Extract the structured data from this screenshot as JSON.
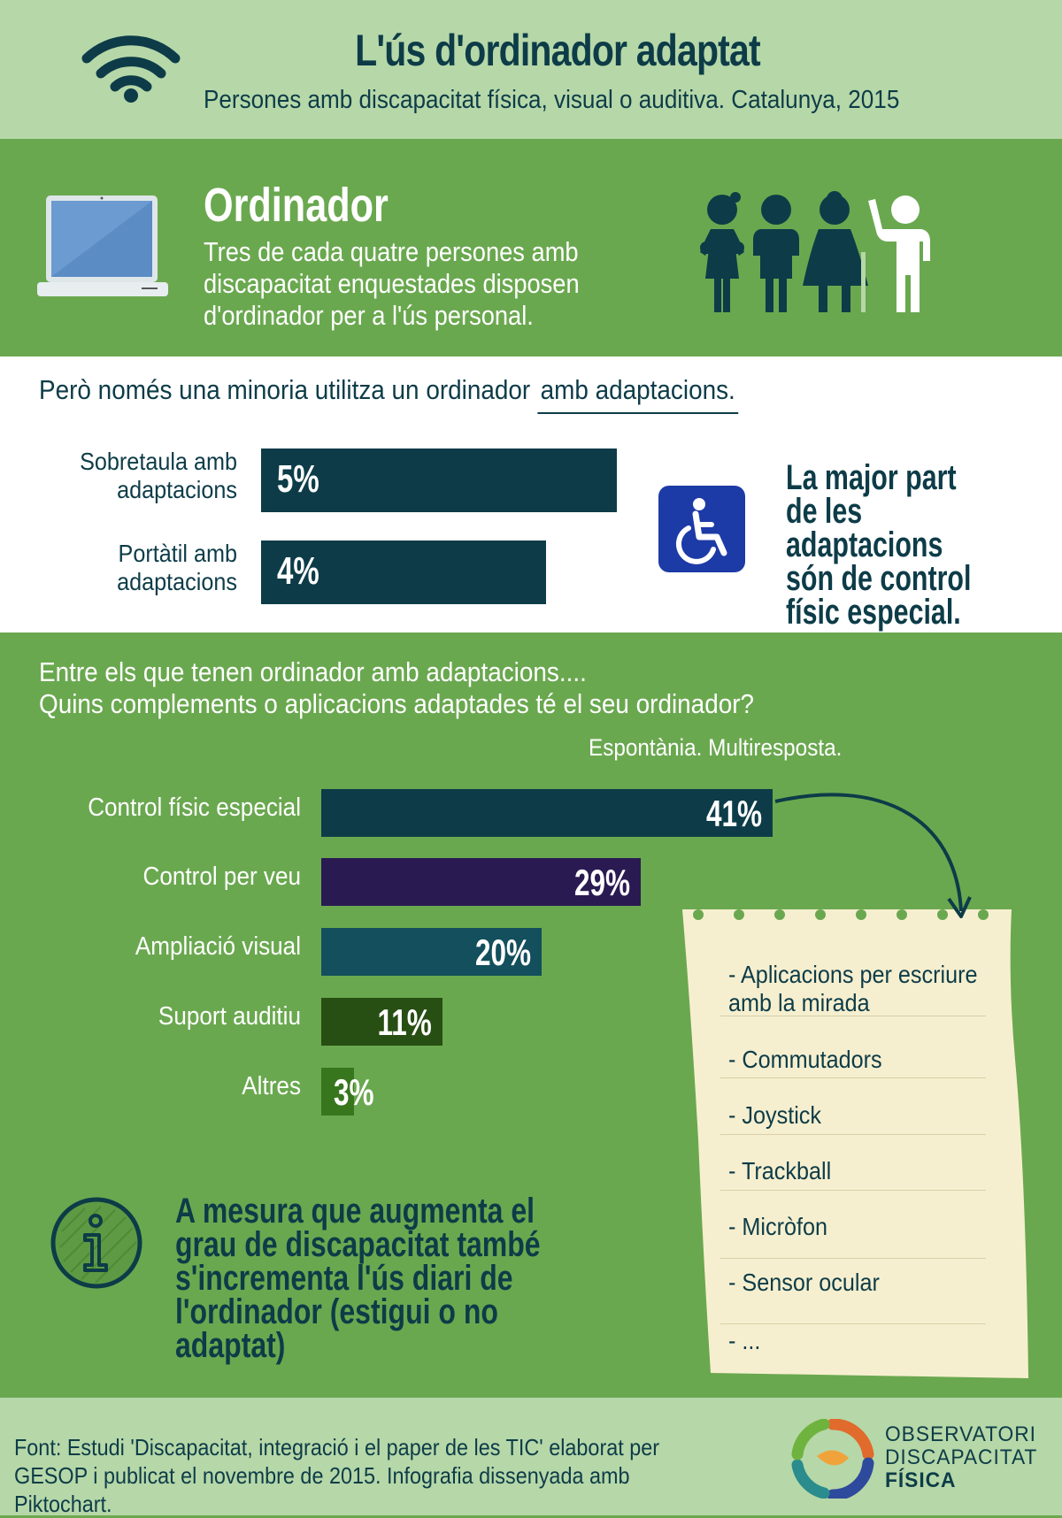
{
  "header": {
    "title": "L'ús d'ordinador adaptat",
    "subtitle": "Persones amb discapacitat física, visual o auditiva. Catalunya, 2015",
    "icon": "wifi-icon"
  },
  "ordinador": {
    "title": "Ordinador",
    "text": "Tres de cada quatre persones amb discapacitat enquestades disposen d'ordinador per a l'ús personal.",
    "laptop_icon": "laptop-icon",
    "people_icon": "people-icon"
  },
  "adaptations": {
    "intro_prefix": "Però només una minoria utilitza un ordinador ",
    "intro_highlight": "amb adaptacions.",
    "callout": "La major part de les adaptacions són de control físic especial.",
    "icon": "wheelchair-icon",
    "icon_color": "#1d3ba6"
  },
  "questions": {
    "line1": "Entre els que tenen ordinador amb adaptacions....",
    "line2": "Quins complements o aplicacions adaptades té el seu ordinador?",
    "note": "Espontània. Multiresposta."
  },
  "list": {
    "items": [
      "- Aplicacions  per escriure amb la mirada",
      "- Commutadors",
      "- Joystick",
      "- Trackball",
      "- Micròfon",
      "- Sensor ocular",
      "- ..."
    ]
  },
  "info": {
    "icon": "info-icon",
    "text": "A mesura que augmenta el grau de discapacitat també s'incrementa l'ús diari de l'ordinador (estigui o no adaptat)"
  },
  "footer": {
    "source": "Font: Estudi 'Discapacitat, integració i el paper de les TIC' elaborat per GESOP i publicat el novembre de 2015. Infografia dissenyada amb Piktochart.",
    "logo_icon": "observatori-logo-icon",
    "logo_line1": "OBSERVATORI",
    "logo_line2": "DISCAPACITAT",
    "logo_line3": "FÍSICA"
  },
  "chart_data": [
    {
      "type": "bar",
      "orientation": "horizontal",
      "categories": [
        "Sobretaula amb adaptacions",
        "Portàtil amb adaptacions"
      ],
      "values": [
        5,
        4
      ],
      "value_labels": [
        "5%",
        "4%"
      ],
      "color": "#0d3c48"
    },
    {
      "type": "bar",
      "orientation": "horizontal",
      "categories": [
        "Control físic especial",
        "Control per veu",
        "Ampliació visual",
        "Suport auditiu",
        "Altres"
      ],
      "values": [
        41,
        29,
        20,
        11,
        3
      ],
      "value_labels": [
        "41%",
        "29%",
        "20%",
        "11%",
        "3%"
      ],
      "colors": [
        "#0d3c48",
        "#2a1a52",
        "#134f5c",
        "#274e13",
        "#38761d"
      ]
    }
  ]
}
